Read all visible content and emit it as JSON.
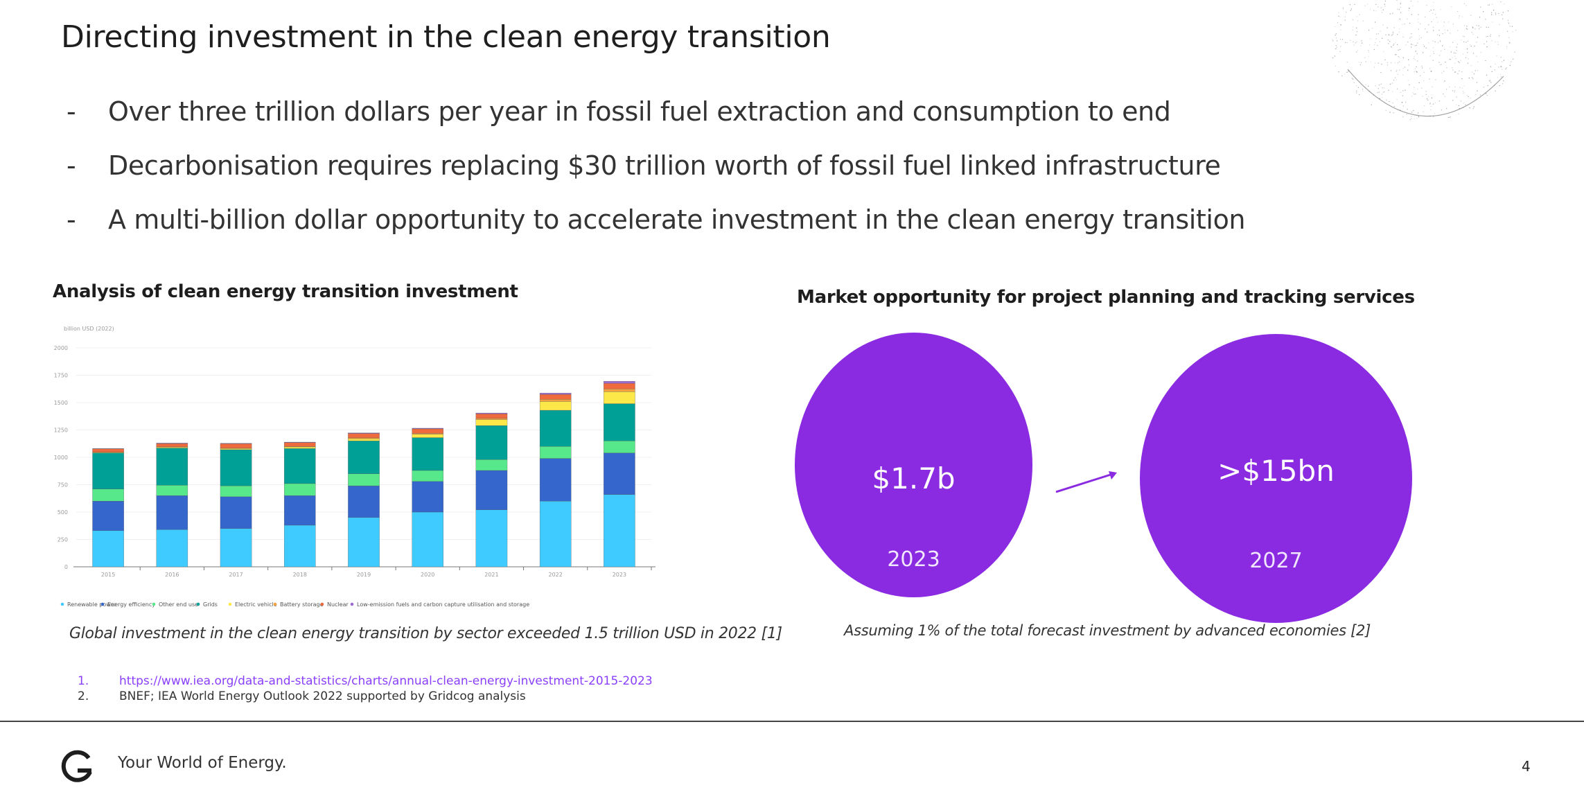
{
  "slide": {
    "title": "Directing investment in the clean energy transition",
    "bullets": [
      "Over three trillion dollars per year in fossil fuel extraction and consumption to end",
      "Decarbonisation requires replacing $30 trillion worth of fossil fuel linked infrastructure",
      "A multi-billion dollar opportunity to accelerate investment in the clean energy transition"
    ],
    "bullet_marker": "-",
    "decorative_icon": "globe-particle-icon"
  },
  "left_panel": {
    "title": "Analysis of clean energy transition investment",
    "caption": "Global investment in the clean energy transition by sector exceeded 1.5 trillion USD in 2022 [1]"
  },
  "right_panel": {
    "title": "Market opportunity for project planning and tracking services",
    "bubbles": [
      {
        "value": "$1.7b",
        "year": "2023"
      },
      {
        "value": ">$15bn",
        "year": "2027"
      }
    ],
    "arrow_icon": "arrow-right-icon",
    "caption": "Assuming 1% of the total forecast investment by advanced economies [2]",
    "bubble_color": "#8a2be2"
  },
  "references": [
    {
      "num": "1.",
      "text": "https://www.iea.org/data-and-statistics/charts/annual-clean-energy-investment-2015-2023"
    },
    {
      "num": "2.",
      "text": "BNEF; IEA World Energy Outlook 2022 supported by Gridcog analysis"
    }
  ],
  "footer": {
    "logo": "gridcog-g-logo",
    "tagline": "Your World of Energy.",
    "page_number": "4"
  },
  "chart_data": {
    "type": "bar",
    "stacked": true,
    "title": "",
    "ylabel": "billion USD (2022)",
    "xlabel": "",
    "ylim": [
      0,
      2000
    ],
    "yticks": [
      0,
      250,
      500,
      750,
      1000,
      1250,
      1500,
      1750,
      2000
    ],
    "grid": true,
    "legend_position": "bottom",
    "categories": [
      "2015",
      "2016",
      "2017",
      "2018",
      "2019",
      "2020",
      "2021",
      "2022",
      "2023"
    ],
    "series": [
      {
        "name": "Renewable power",
        "color": "#3fcbff",
        "values": [
          330,
          340,
          350,
          380,
          450,
          500,
          520,
          600,
          660
        ]
      },
      {
        "name": "Energy efficiency",
        "color": "#3566cc",
        "values": [
          270,
          310,
          290,
          270,
          290,
          280,
          360,
          390,
          380
        ]
      },
      {
        "name": "Other end use",
        "color": "#57e88c",
        "values": [
          110,
          95,
          100,
          110,
          110,
          100,
          100,
          110,
          110
        ]
      },
      {
        "name": "Grids",
        "color": "#00a096",
        "values": [
          330,
          340,
          330,
          320,
          300,
          300,
          310,
          330,
          340
        ]
      },
      {
        "name": "Electric vehicle",
        "color": "#fde84a",
        "values": [
          5,
          8,
          10,
          15,
          20,
          30,
          55,
          80,
          110
        ]
      },
      {
        "name": "Battery storage",
        "color": "#f5a142",
        "values": [
          2,
          3,
          4,
          5,
          8,
          10,
          12,
          20,
          25
        ]
      },
      {
        "name": "Nuclear",
        "color": "#ef6a3c",
        "values": [
          30,
          30,
          40,
          35,
          40,
          40,
          40,
          45,
          50
        ]
      },
      {
        "name": "Low-emission fuels and carbon capture utilisation and storage",
        "color": "#9b6bd1",
        "values": [
          3,
          4,
          4,
          4,
          5,
          6,
          8,
          12,
          20
        ]
      }
    ]
  }
}
